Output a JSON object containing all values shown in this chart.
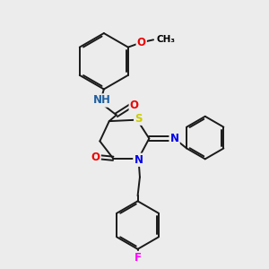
{
  "bg_color": "#ececec",
  "bond_color": "#1a1a1a",
  "atom_colors": {
    "N": "#0000ee",
    "O": "#ee0000",
    "S": "#cccc00",
    "F": "#ff00ff",
    "NH": "#2060a0",
    "C": "#1a1a1a"
  },
  "lw": 1.4,
  "fs": 8.5
}
